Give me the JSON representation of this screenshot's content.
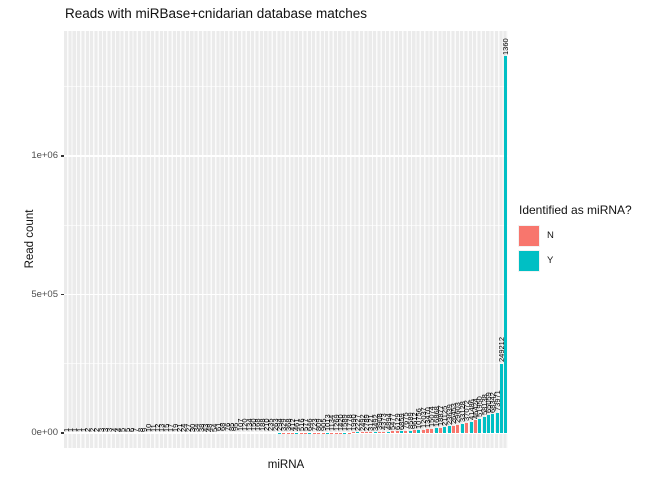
{
  "title": "Reads with miRBase+cnidarian database matches",
  "axes": {
    "x_title": "miRNA",
    "y_title": "Read count"
  },
  "legend": {
    "title": "Identified as miRNA?",
    "items": [
      {
        "label": "N",
        "color": "#F8766D"
      },
      {
        "label": "Y",
        "color": "#00BFC4"
      }
    ]
  },
  "colors": {
    "group_N": "#F8766D",
    "group_Y": "#00BFC4",
    "panel_background": "#EBEBEB",
    "gridline": "#FFFFFF",
    "tick_text": "#4D4D4D"
  },
  "chart_data": {
    "type": "bar",
    "title": "Reads with miRBase+cnidarian database matches",
    "xlabel": "miRNA",
    "ylabel": "Read count",
    "ylim": [
      0,
      1450000
    ],
    "grid": "on",
    "legend_position": "right",
    "legend_title": "Identified as miRNA?",
    "bar_labels_rotated_degrees": 90,
    "x_tick_labels_shown": false,
    "y_ticks": [
      {
        "label": "0e+00",
        "value": 0
      },
      {
        "label": "5e+05",
        "value": 500000
      },
      {
        "label": "1e+06",
        "value": 1000000
      }
    ],
    "y_minor_gridlines": [
      250000,
      750000,
      1250000
    ],
    "bars_note_groups": "N = not identified as miRNA (salmon), Y = identified (teal); bars sorted ascending by read count",
    "values": [
      1,
      1,
      1,
      1,
      1,
      2,
      2,
      2,
      3,
      3,
      3,
      4,
      4,
      5,
      5,
      6,
      7,
      8,
      9,
      10,
      11,
      12,
      13,
      15,
      17,
      19,
      21,
      24,
      27,
      30,
      34,
      38,
      43,
      48,
      54,
      61,
      68,
      76,
      85,
      95,
      107,
      120,
      134,
      150,
      168,
      188,
      210,
      235,
      263,
      294,
      329,
      368,
      412,
      461,
      516,
      577,
      646,
      723,
      809,
      905,
      1013,
      1134,
      1269,
      1420,
      1589,
      1778,
      1990,
      2227,
      2492,
      2789,
      3121,
      3492,
      3908,
      4373,
      4894,
      5477,
      6129,
      6859,
      7675,
      8589,
      9612,
      10756,
      12037,
      13470,
      15074,
      16868,
      18877,
      21125,
      23639,
      26453,
      29603,
      33128,
      37072,
      41486,
      46424,
      51950,
      58138,
      65059,
      68342,
      73971,
      249212,
      1360000
    ],
    "groups": "NNYNNNNYNNNNNYNNYNNNYNNNNYNNYNNNYNNNYNNNNYNNNYNNNYNNNYNNYNNNYNNNYNNYNNNYNNYNNYNYNYNNNYNYYNNYNYNYYYYYYY",
    "label_overrides": {
      "101": "1360"
    }
  }
}
